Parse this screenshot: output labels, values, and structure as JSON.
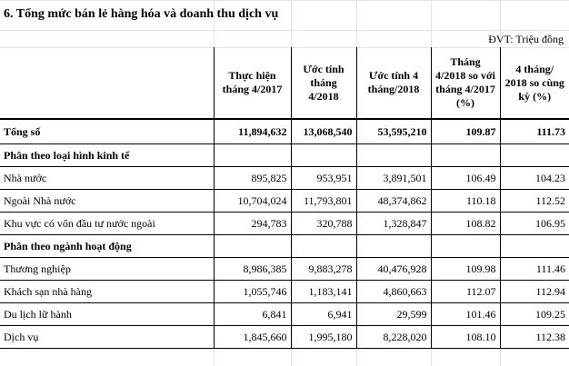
{
  "title": "6. Tổng mức bán lẻ hàng hóa và doanh thu dịch vụ",
  "unit": "ĐVT: Triệu đồng",
  "columns": [
    "Thực hiện tháng 4/2017",
    "Ước tính tháng 4/2018",
    "Ước tính 4 tháng/2018",
    "Tháng 4/2018 so với tháng 4/2017 (%)",
    "4 tháng/ 2018 so cùng kỳ (%)"
  ],
  "total": {
    "label": "Tổng số",
    "values": [
      "11,894,632",
      "13,068,540",
      "53,595,210",
      "109.87",
      "111.73"
    ]
  },
  "section1": {
    "title": "Phân theo loại hình kinh tế",
    "rows": [
      {
        "label": "Nhà nước",
        "values": [
          "895,825",
          "953,951",
          "3,891,501",
          "106.49",
          "104.23"
        ]
      },
      {
        "label": "Ngoài Nhà nước",
        "values": [
          "10,704,024",
          "11,793,801",
          "48,374,862",
          "110.18",
          "112.52"
        ]
      },
      {
        "label": "Khu vực có vốn đầu tư nước ngoài",
        "values": [
          "294,783",
          "320,788",
          "1,328,847",
          "108.82",
          "106.95"
        ]
      }
    ]
  },
  "section2": {
    "title": "Phân theo ngành hoạt động",
    "rows": [
      {
        "label": "Thương nghiệp",
        "values": [
          "8,986,385",
          "9,883,278",
          "40,476,928",
          "109.98",
          "111.46"
        ]
      },
      {
        "label": "Khách sạn nhà hàng",
        "values": [
          "1,055,746",
          "1,183,141",
          "4,860,663",
          "112.07",
          "112.94"
        ]
      },
      {
        "label": "Du lịch lữ hành",
        "values": [
          "6,841",
          "6,941",
          "29,599",
          "101.46",
          "109.25"
        ]
      },
      {
        "label": "Dịch vụ",
        "values": [
          "1,845,660",
          "1,995,180",
          "8,228,020",
          "108.10",
          "112.38"
        ]
      }
    ]
  }
}
